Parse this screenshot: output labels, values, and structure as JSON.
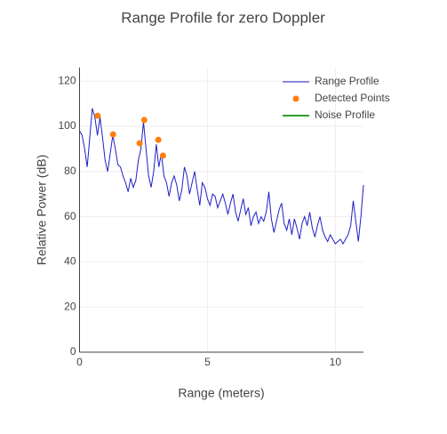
{
  "chart_data": {
    "type": "line",
    "title": "Range Profile for zero Doppler",
    "xlabel": "Range (meters)",
    "ylabel": "Relative Power (dB)",
    "xlim": [
      0,
      11.1
    ],
    "xticks": [
      0,
      5,
      10
    ],
    "ylim": [
      0,
      126
    ],
    "yticks": [
      0,
      20,
      40,
      60,
      80,
      100,
      120
    ],
    "grid": true,
    "legend": "top-right",
    "series": [
      {
        "name": "Range Profile",
        "color": "#1f1fc8",
        "mode": "lines",
        "x": [
          0,
          0.1,
          0.2,
          0.3,
          0.4,
          0.5,
          0.6,
          0.7,
          0.8,
          0.9,
          1.0,
          1.1,
          1.2,
          1.3,
          1.4,
          1.5,
          1.6,
          1.7,
          1.8,
          1.9,
          2.0,
          2.1,
          2.2,
          2.3,
          2.4,
          2.5,
          2.6,
          2.7,
          2.8,
          2.9,
          3.0,
          3.1,
          3.2,
          3.3,
          3.4,
          3.5,
          3.6,
          3.7,
          3.8,
          3.9,
          4.0,
          4.1,
          4.2,
          4.3,
          4.4,
          4.5,
          4.6,
          4.7,
          4.8,
          4.9,
          5.0,
          5.1,
          5.2,
          5.3,
          5.4,
          5.5,
          5.6,
          5.7,
          5.8,
          5.9,
          6.0,
          6.1,
          6.2,
          6.3,
          6.4,
          6.5,
          6.6,
          6.7,
          6.8,
          6.9,
          7.0,
          7.1,
          7.2,
          7.3,
          7.4,
          7.5,
          7.6,
          7.7,
          7.8,
          7.9,
          8.0,
          8.1,
          8.2,
          8.3,
          8.4,
          8.5,
          8.6,
          8.7,
          8.8,
          8.9,
          9.0,
          9.1,
          9.2,
          9.3,
          9.4,
          9.5,
          9.6,
          9.7,
          9.8,
          9.9,
          10.0,
          10.1,
          10.2,
          10.3,
          10.4,
          10.5,
          10.6,
          10.7,
          10.8,
          10.9,
          11.0,
          11.1
        ],
        "values": [
          98,
          96,
          90,
          82,
          95,
          108,
          104,
          96,
          104,
          95,
          85,
          80,
          88,
          96,
          90,
          83,
          82,
          78,
          75,
          71,
          77,
          73,
          76,
          85,
          90,
          102,
          90,
          78,
          73,
          80,
          92,
          82,
          88,
          78,
          75,
          69,
          75,
          78,
          74,
          67,
          72,
          82,
          78,
          70,
          75,
          80,
          72,
          65,
          75,
          73,
          68,
          65,
          70,
          69,
          64,
          67,
          70,
          66,
          61,
          66,
          70,
          62,
          58,
          63,
          68,
          61,
          64,
          56,
          60,
          62,
          57,
          60,
          58,
          62,
          71,
          59,
          53,
          58,
          63,
          66,
          57,
          54,
          59,
          52,
          59,
          55,
          50,
          57,
          60,
          56,
          62,
          55,
          51,
          56,
          60,
          54,
          51,
          49,
          52,
          50,
          48,
          49,
          50,
          48,
          50,
          52,
          56,
          67,
          58,
          49,
          60,
          74
        ]
      },
      {
        "name": "Detected Points",
        "color": "#ff7f0e",
        "mode": "markers",
        "x": [
          0.71,
          1.31,
          2.35,
          2.53,
          3.08,
          3.26
        ],
        "values": [
          104.7,
          96.4,
          92.5,
          102.8,
          94,
          87
        ]
      },
      {
        "name": "Noise Profile",
        "color": "#2ca02c",
        "mode": "lines",
        "x": [],
        "values": []
      }
    ]
  }
}
